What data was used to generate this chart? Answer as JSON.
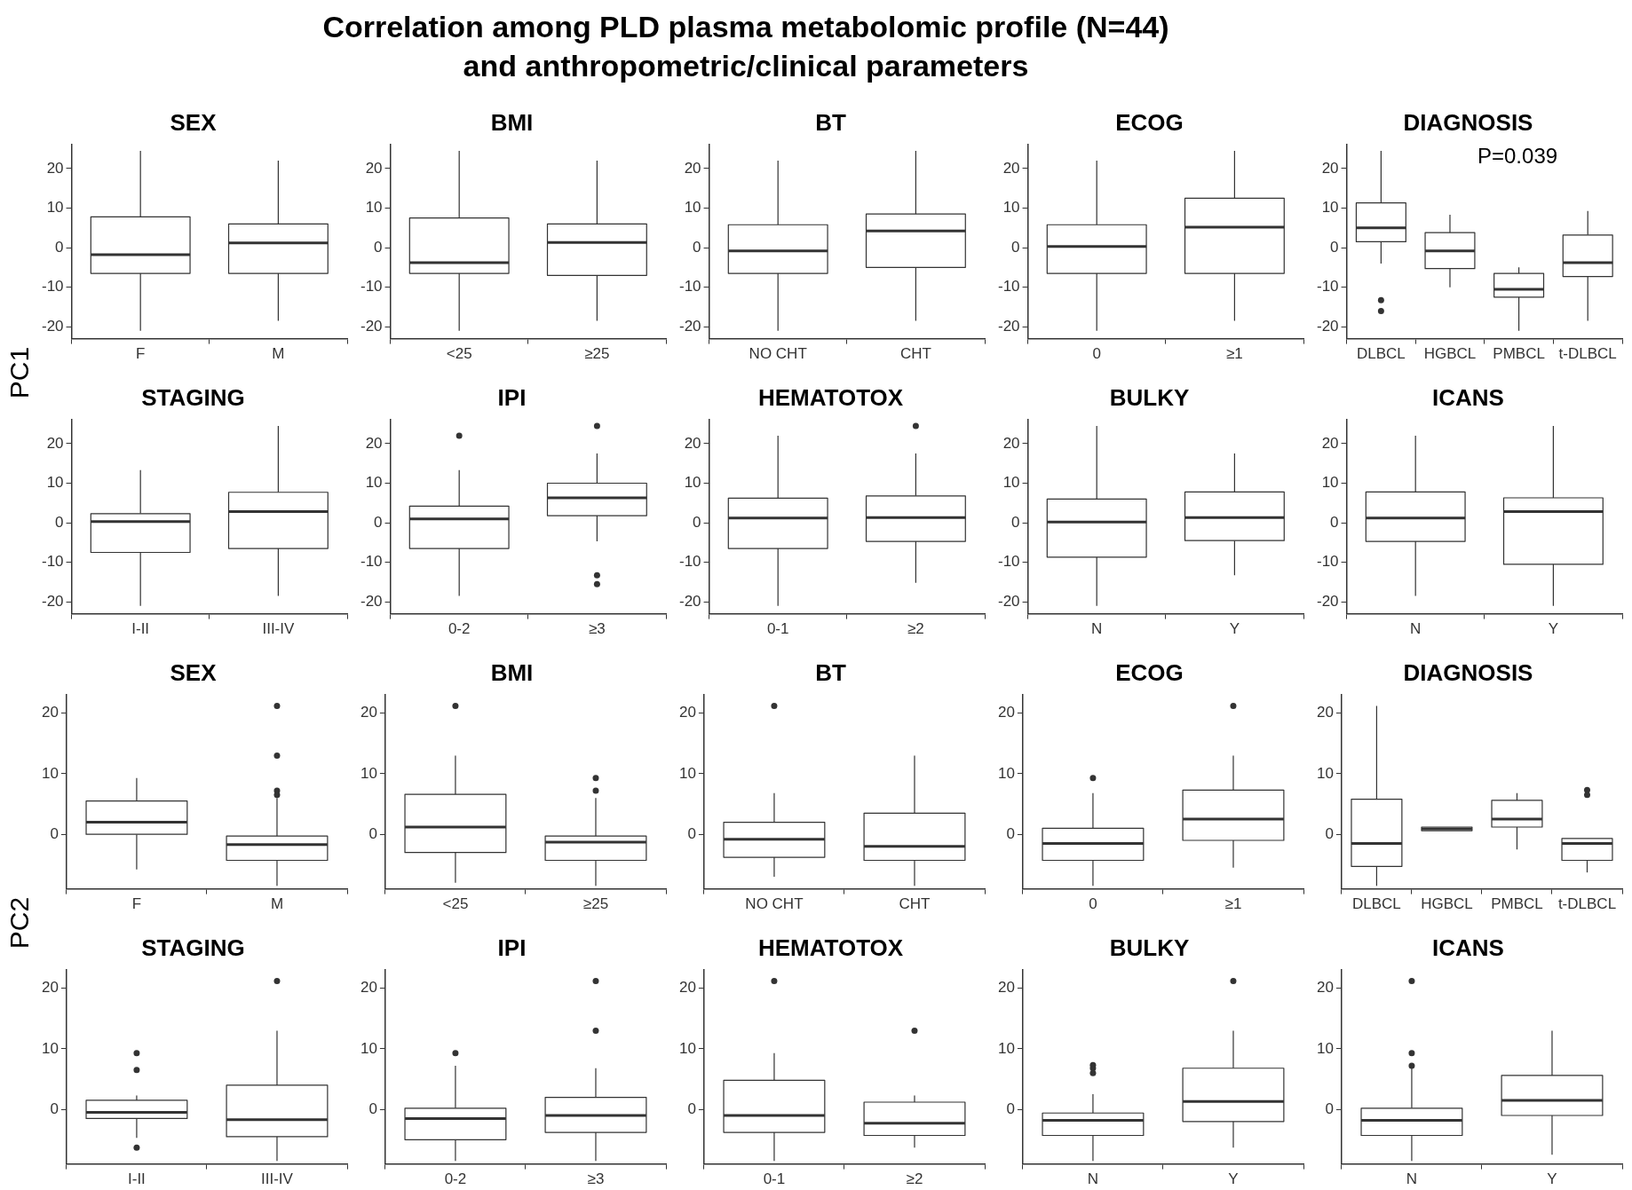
{
  "chart_data": [
    {
      "type": "other",
      "title": "Correlation among PLD plasma metabolomic profile (N=44) and anthropometric/clinical parameters"
    },
    {
      "type": "box",
      "title": "SEX",
      "ylabel": "PC1",
      "categories": [
        "F",
        "M"
      ],
      "ylim": [
        -23,
        26
      ],
      "yticks": [
        -20,
        -10,
        0,
        10,
        20
      ],
      "grid": false,
      "boxes": [
        {
          "low": -21,
          "q1": -6.5,
          "median": -1.8,
          "q3": 7.8,
          "high": 24.5
        },
        {
          "low": -18.5,
          "q1": -6.5,
          "median": 1.2,
          "q3": 6,
          "high": 22
        }
      ]
    },
    {
      "type": "box",
      "title": "BMI",
      "categories": [
        "<25",
        "≥25"
      ],
      "ylim": [
        -23,
        26
      ],
      "yticks": [
        -20,
        -10,
        0,
        10,
        20
      ],
      "grid": false,
      "boxes": [
        {
          "low": -21,
          "q1": -6.5,
          "median": -3.8,
          "q3": 7.5,
          "high": 24.5
        },
        {
          "low": -18.5,
          "q1": -7,
          "median": 1.3,
          "q3": 6,
          "high": 22
        }
      ]
    },
    {
      "type": "box",
      "title": "BT",
      "categories": [
        "NO CHT",
        "CHT"
      ],
      "ylim": [
        -23,
        26
      ],
      "yticks": [
        -20,
        -10,
        0,
        10,
        20
      ],
      "grid": false,
      "boxes": [
        {
          "low": -21,
          "q1": -6.5,
          "median": -0.8,
          "q3": 5.8,
          "high": 22
        },
        {
          "low": -18.5,
          "q1": -5,
          "median": 4.2,
          "q3": 8.5,
          "high": 24.5
        }
      ]
    },
    {
      "type": "box",
      "title": "ECOG",
      "categories": [
        "0",
        "≥1"
      ],
      "ylim": [
        -23,
        26
      ],
      "yticks": [
        -20,
        -10,
        0,
        10,
        20
      ],
      "grid": false,
      "boxes": [
        {
          "low": -21,
          "q1": -6.5,
          "median": 0.3,
          "q3": 5.8,
          "high": 22
        },
        {
          "low": -18.5,
          "q1": -6.5,
          "median": 5.2,
          "q3": 12.5,
          "high": 24.5
        }
      ]
    },
    {
      "type": "box",
      "title": "DIAGNOSIS",
      "annotations": [
        "P=0.039"
      ],
      "categories": [
        "DLBCL",
        "HGBCL",
        "PMBCL",
        "t-DLBCL"
      ],
      "ylim": [
        -23,
        26
      ],
      "yticks": [
        -20,
        -10,
        0,
        10,
        20
      ],
      "grid": false,
      "boxes": [
        {
          "low": -4,
          "q1": 1.5,
          "median": 5,
          "q3": 11.3,
          "high": 24.5,
          "outliers": [
            -13.3,
            -16
          ]
        },
        {
          "low": -10,
          "q1": -5.3,
          "median": -0.8,
          "q3": 3.8,
          "high": 8.3
        },
        {
          "low": -21,
          "q1": -12.5,
          "median": -10.5,
          "q3": -6.5,
          "high": -5
        },
        {
          "low": -18.5,
          "q1": -7.3,
          "median": -3.8,
          "q3": 3.2,
          "high": 9.3
        }
      ]
    },
    {
      "type": "box",
      "title": "STAGING",
      "categories": [
        "I-II",
        "III-IV"
      ],
      "ylim": [
        -23,
        26
      ],
      "yticks": [
        -20,
        -10,
        0,
        10,
        20
      ],
      "grid": false,
      "boxes": [
        {
          "low": -21,
          "q1": -7.5,
          "median": 0.3,
          "q3": 2.3,
          "high": 13.3
        },
        {
          "low": -18.5,
          "q1": -6.5,
          "median": 2.8,
          "q3": 7.7,
          "high": 24.5
        }
      ]
    },
    {
      "type": "box",
      "title": "IPI",
      "categories": [
        "0-2",
        "≥3"
      ],
      "ylim": [
        -23,
        26
      ],
      "yticks": [
        -20,
        -10,
        0,
        10,
        20
      ],
      "grid": false,
      "boxes": [
        {
          "low": -18.5,
          "q1": -6.5,
          "median": 1,
          "q3": 4.2,
          "high": 13.3,
          "outliers": [
            22
          ]
        },
        {
          "low": -4.7,
          "q1": 1.8,
          "median": 6.3,
          "q3": 10,
          "high": 17.5,
          "outliers": [
            24.5,
            -13.3,
            -15.5
          ]
        }
      ]
    },
    {
      "type": "box",
      "title": "HEMATOTOX",
      "categories": [
        "0-1",
        "≥2"
      ],
      "ylim": [
        -23,
        26
      ],
      "yticks": [
        -20,
        -10,
        0,
        10,
        20
      ],
      "grid": false,
      "boxes": [
        {
          "low": -21,
          "q1": -6.5,
          "median": 1.2,
          "q3": 6.2,
          "high": 22
        },
        {
          "low": -15.2,
          "q1": -4.7,
          "median": 1.3,
          "q3": 6.8,
          "high": 17.5,
          "outliers": [
            24.5
          ]
        }
      ]
    },
    {
      "type": "box",
      "title": "BULKY",
      "categories": [
        "N",
        "Y"
      ],
      "ylim": [
        -23,
        26
      ],
      "yticks": [
        -20,
        -10,
        0,
        10,
        20
      ],
      "grid": false,
      "boxes": [
        {
          "low": -21,
          "q1": -8.7,
          "median": 0.2,
          "q3": 6,
          "high": 24.5
        },
        {
          "low": -13.3,
          "q1": -4.5,
          "median": 1.3,
          "q3": 7.8,
          "high": 17.5
        }
      ]
    },
    {
      "type": "box",
      "title": "ICANS",
      "categories": [
        "N",
        "Y"
      ],
      "ylim": [
        -23,
        26
      ],
      "yticks": [
        -20,
        -10,
        0,
        10,
        20
      ],
      "grid": false,
      "boxes": [
        {
          "low": -18.5,
          "q1": -4.7,
          "median": 1.2,
          "q3": 7.8,
          "high": 22
        },
        {
          "low": -21,
          "q1": -10.5,
          "median": 2.8,
          "q3": 6.3,
          "high": 24.5
        }
      ]
    },
    {
      "type": "box",
      "title": "SEX",
      "ylabel": "PC2",
      "categories": [
        "F",
        "M"
      ],
      "ylim": [
        -9,
        23
      ],
      "yticks": [
        0,
        10,
        20
      ],
      "grid": false,
      "boxes": [
        {
          "low": -5.8,
          "q1": 0,
          "median": 2,
          "q3": 5.5,
          "high": 9.3
        },
        {
          "low": -8.5,
          "q1": -4.3,
          "median": -1.7,
          "q3": -0.3,
          "high": 6,
          "outliers": [
            21.2,
            13,
            7.2,
            6.5
          ]
        }
      ]
    },
    {
      "type": "box",
      "title": "BMI",
      "categories": [
        "<25",
        "≥25"
      ],
      "ylim": [
        -9,
        23
      ],
      "yticks": [
        0,
        10,
        20
      ],
      "grid": false,
      "boxes": [
        {
          "low": -8,
          "q1": -3,
          "median": 1.2,
          "q3": 6.6,
          "high": 13,
          "outliers": [
            21.2
          ]
        },
        {
          "low": -8.5,
          "q1": -4.3,
          "median": -1.3,
          "q3": -0.3,
          "high": 6,
          "outliers": [
            9.3,
            7.2
          ]
        }
      ]
    },
    {
      "type": "box",
      "title": "BT",
      "categories": [
        "NO CHT",
        "CHT"
      ],
      "ylim": [
        -9,
        23
      ],
      "yticks": [
        0,
        10,
        20
      ],
      "grid": false,
      "boxes": [
        {
          "low": -7,
          "q1": -3.8,
          "median": -0.8,
          "q3": 2,
          "high": 6.8,
          "outliers": [
            21.2
          ]
        },
        {
          "low": -8.5,
          "q1": -4.3,
          "median": -2,
          "q3": 3.5,
          "high": 13
        }
      ]
    },
    {
      "type": "box",
      "title": "ECOG",
      "categories": [
        "0",
        "≥1"
      ],
      "ylim": [
        -9,
        23
      ],
      "yticks": [
        0,
        10,
        20
      ],
      "grid": false,
      "boxes": [
        {
          "low": -8.5,
          "q1": -4.3,
          "median": -1.5,
          "q3": 1,
          "high": 6.8,
          "outliers": [
            9.3
          ]
        },
        {
          "low": -5.5,
          "q1": -1,
          "median": 2.5,
          "q3": 7.3,
          "high": 13,
          "outliers": [
            21.2
          ]
        }
      ]
    },
    {
      "type": "box",
      "title": "DIAGNOSIS",
      "categories": [
        "DLBCL",
        "HGBCL",
        "PMBCL",
        "t-DLBCL"
      ],
      "ylim": [
        -9,
        23
      ],
      "yticks": [
        0,
        10,
        20
      ],
      "grid": false,
      "boxes": [
        {
          "low": -8.5,
          "q1": -5.3,
          "median": -1.5,
          "q3": 5.8,
          "high": 21.2
        },
        {
          "low": 0.6,
          "q1": 0.6,
          "median": 0.9,
          "q3": 1.2,
          "high": 1.2
        },
        {
          "low": -2.5,
          "q1": 1.2,
          "median": 2.5,
          "q3": 5.6,
          "high": 6.8
        },
        {
          "low": -6.3,
          "q1": -4.3,
          "median": -1.5,
          "q3": -0.7,
          "high": -0.7,
          "outliers": [
            7.3,
            6.5
          ]
        }
      ]
    },
    {
      "type": "box",
      "title": "STAGING",
      "categories": [
        "I-II",
        "III-IV"
      ],
      "ylim": [
        -9,
        23
      ],
      "yticks": [
        0,
        10,
        20
      ],
      "grid": false,
      "boxes": [
        {
          "low": -4.7,
          "q1": -1.5,
          "median": -0.5,
          "q3": 1.5,
          "high": 2.3,
          "outliers": [
            9.3,
            6.5,
            -6.3
          ]
        },
        {
          "low": -8.5,
          "q1": -4.5,
          "median": -1.7,
          "q3": 4,
          "high": 13,
          "outliers": [
            21.2
          ]
        }
      ]
    },
    {
      "type": "box",
      "title": "IPI",
      "categories": [
        "0-2",
        "≥3"
      ],
      "ylim": [
        -9,
        23
      ],
      "yticks": [
        0,
        10,
        20
      ],
      "grid": false,
      "boxes": [
        {
          "low": -8.5,
          "q1": -5,
          "median": -1.5,
          "q3": 0.2,
          "high": 7.2,
          "outliers": [
            9.3
          ]
        },
        {
          "low": -8.5,
          "q1": -3.8,
          "median": -1,
          "q3": 2,
          "high": 6.8,
          "outliers": [
            21.2,
            13
          ]
        }
      ]
    },
    {
      "type": "box",
      "title": "HEMATOTOX",
      "categories": [
        "0-1",
        "≥2"
      ],
      "ylim": [
        -9,
        23
      ],
      "yticks": [
        0,
        10,
        20
      ],
      "grid": false,
      "boxes": [
        {
          "low": -8.5,
          "q1": -3.8,
          "median": -1,
          "q3": 4.8,
          "high": 9.3,
          "outliers": [
            21.2
          ]
        },
        {
          "low": -6.3,
          "q1": -4.3,
          "median": -2.3,
          "q3": 1.2,
          "high": 2.3,
          "outliers": [
            13
          ]
        }
      ]
    },
    {
      "type": "box",
      "title": "BULKY",
      "categories": [
        "N",
        "Y"
      ],
      "ylim": [
        -9,
        23
      ],
      "yticks": [
        0,
        10,
        20
      ],
      "grid": false,
      "boxes": [
        {
          "low": -8.5,
          "q1": -4.3,
          "median": -1.8,
          "q3": -0.6,
          "high": 2.5,
          "outliers": [
            7.3,
            6.8,
            6
          ]
        },
        {
          "low": -6.3,
          "q1": -2,
          "median": 1.3,
          "q3": 6.8,
          "high": 13,
          "outliers": [
            21.2
          ]
        }
      ]
    },
    {
      "type": "box",
      "title": "ICANS",
      "categories": [
        "N",
        "Y"
      ],
      "ylim": [
        -9,
        23
      ],
      "yticks": [
        0,
        10,
        20
      ],
      "grid": false,
      "boxes": [
        {
          "low": -8.5,
          "q1": -4.3,
          "median": -1.8,
          "q3": 0.2,
          "high": 6.8,
          "outliers": [
            21.2,
            9.3,
            7.2
          ]
        },
        {
          "low": -7.5,
          "q1": -1,
          "median": 1.5,
          "q3": 5.6,
          "high": 13
        }
      ]
    }
  ]
}
